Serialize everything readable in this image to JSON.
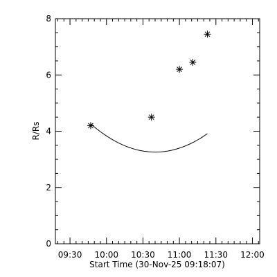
{
  "chart_data": {
    "type": "scatter",
    "xlabel": "Start Time (30-Nov-25 09:18:07)",
    "ylabel": "R/Rs",
    "x_tick_labels": [
      "09:30",
      "10:00",
      "10:30",
      "11:00",
      "11:30",
      "12:00"
    ],
    "x_tick_minutes": [
      30,
      60,
      90,
      120,
      150,
      180
    ],
    "y_tick_labels": [
      "0",
      "2",
      "4",
      "6",
      "8"
    ],
    "y_tick_values": [
      0,
      2,
      4,
      6,
      8
    ],
    "xlim_minutes": [
      18,
      186
    ],
    "ylim": [
      0,
      8
    ],
    "grid": false,
    "series": [
      {
        "marker": "asterisk",
        "points": [
          {
            "time": "09:47",
            "minutes": 47,
            "y": 4.2
          },
          {
            "time": "10:37",
            "minutes": 97,
            "y": 4.5
          },
          {
            "time": "11:00",
            "minutes": 120,
            "y": 6.2
          },
          {
            "time": "11:11",
            "minutes": 131,
            "y": 6.45
          },
          {
            "time": "11:23",
            "minutes": 143,
            "y": 7.45
          }
        ]
      }
    ],
    "fit": {
      "type": "quadratic",
      "x_range_minutes": [
        47,
        143
      ],
      "coefficients": [
        6.8295,
        -0.0713,
        0.000356
      ]
    }
  }
}
